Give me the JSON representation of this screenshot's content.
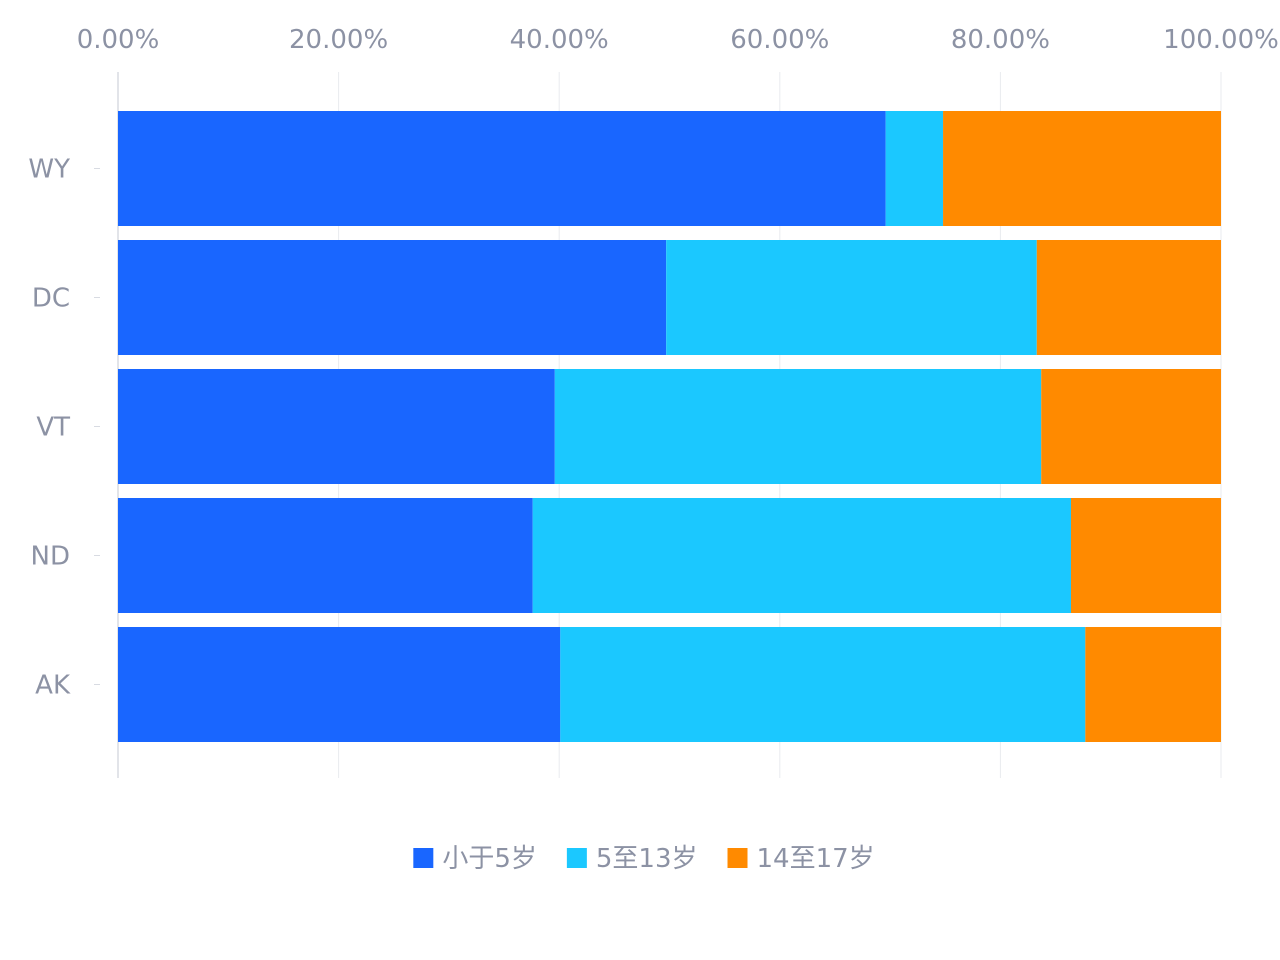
{
  "chart_data": {
    "type": "bar",
    "orientation": "horizontal",
    "stacked": true,
    "normalized": true,
    "categories": [
      "WY",
      "DC",
      "VT",
      "ND",
      "AK"
    ],
    "series": [
      {
        "name": "小于5岁",
        "color": "#1966ff",
        "values": [
          0.696,
          0.497,
          0.396,
          0.376,
          0.401
        ]
      },
      {
        "name": "5至13岁",
        "color": "#1bc8ff",
        "values": [
          0.052,
          0.336,
          0.441,
          0.488,
          0.476
        ]
      },
      {
        "name": "14至17岁",
        "color": "#ff8a00",
        "values": [
          0.252,
          0.167,
          0.163,
          0.136,
          0.123
        ]
      }
    ],
    "x_ticks": [
      "0.00%",
      "20.00%",
      "40.00%",
      "60.00%",
      "80.00%",
      "100.00%"
    ],
    "xlim": [
      0,
      1
    ],
    "x_axis_position": "top",
    "grid": true,
    "legend_position": "bottom"
  }
}
